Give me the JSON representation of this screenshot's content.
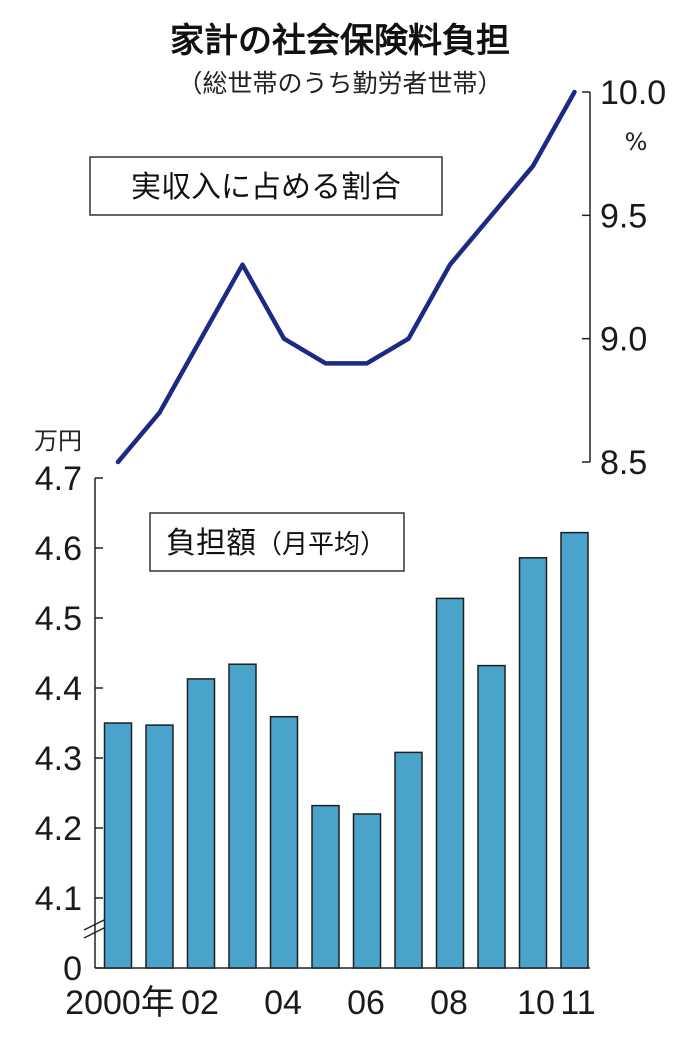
{
  "chart_data": {
    "type": "bar+line",
    "title": "家計の社会保険料負担",
    "subtitle": "（総世帯のうち勤労者世帯）",
    "x_labels": [
      "2000年",
      "02",
      "04",
      "06",
      "08",
      "10",
      "11"
    ],
    "years": [
      2000,
      2001,
      2002,
      2003,
      2004,
      2005,
      2006,
      2007,
      2008,
      2009,
      2010,
      2011
    ],
    "line_series": {
      "name": "実収入に占める割合",
      "unit": "%",
      "values": [
        8.5,
        8.7,
        9.0,
        9.3,
        9.0,
        8.9,
        8.9,
        9.0,
        9.3,
        9.5,
        9.7,
        10.0
      ],
      "ylim": [
        8.5,
        10.0
      ],
      "ticks": [
        "8.5",
        "9.0",
        "9.5",
        "10.0"
      ]
    },
    "bar_series": {
      "name": "負担額",
      "name_suffix": "（月平均）",
      "unit": "万円",
      "values": [
        4.35,
        4.347,
        4.413,
        4.434,
        4.359,
        4.232,
        4.22,
        4.308,
        4.528,
        4.432,
        4.586,
        4.622
      ],
      "ylim": [
        4.0,
        4.7
      ],
      "axis_break": true,
      "ticks": [
        "0",
        "4.1",
        "4.2",
        "4.3",
        "4.4",
        "4.5",
        "4.6",
        "4.7"
      ]
    },
    "colors": {
      "bar": "#4aa3cb",
      "line": "#1b2a82"
    }
  }
}
